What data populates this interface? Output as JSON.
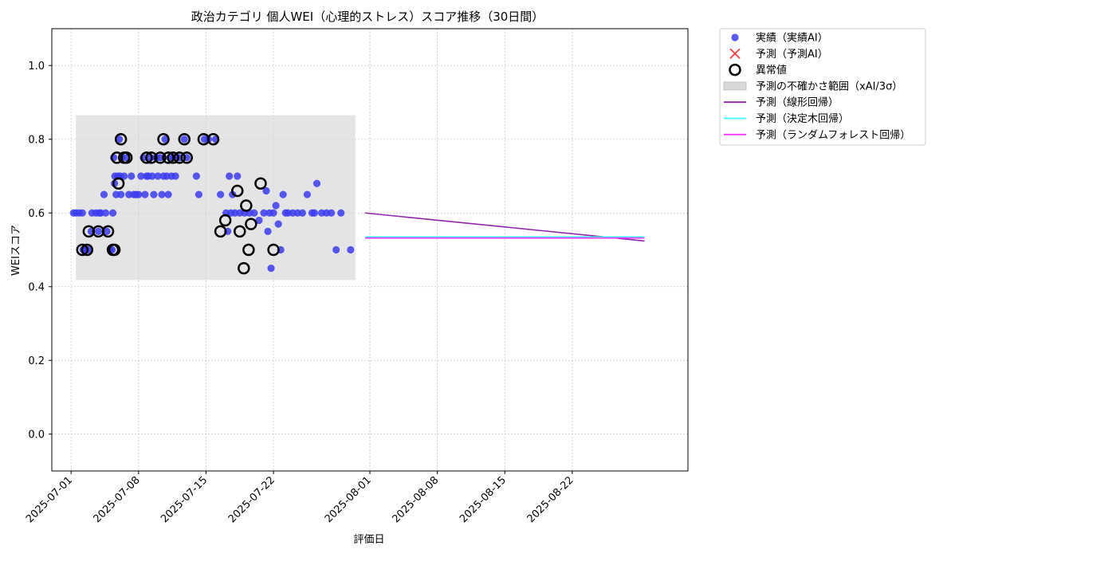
{
  "chart_data": {
    "type": "scatter",
    "title": "政治カテゴリ 個人WEI（心理的ストレス）スコア推移（30日間）",
    "xlabel": "評価日",
    "ylabel": "WEIスコア",
    "xlim": [
      "2025-06-29",
      "2025-09-03"
    ],
    "ylim": [
      -0.1,
      1.1
    ],
    "x_ticks": [
      "2025-07-01",
      "2025-07-08",
      "2025-07-15",
      "2025-07-22",
      "2025-08-01",
      "2025-08-08",
      "2025-08-15",
      "2025-08-22"
    ],
    "y_ticks": [
      0.0,
      0.2,
      0.4,
      0.6,
      0.8,
      1.0
    ],
    "y_tick_labels": [
      "0.0",
      "0.2",
      "0.4",
      "0.6",
      "0.8",
      "1.0"
    ],
    "grid": true,
    "legend_position": "outside-top-right",
    "legend": [
      {
        "label": "実績（実績AI）",
        "kind": "dot",
        "color": "#3c3cf0"
      },
      {
        "label": "予測（予測AI）",
        "kind": "x",
        "color": "#ff3b3b"
      },
      {
        "label": "異常値",
        "kind": "ring",
        "color": "#000000"
      },
      {
        "label": "予測の不確かさ範囲（xAI/3σ）",
        "kind": "band",
        "color": "#d8d8d8"
      },
      {
        "label": "予測（線形回帰）",
        "kind": "line",
        "color": "#8e24aa"
      },
      {
        "label": "予測（決定木回帰）",
        "kind": "line",
        "color": "#33ffff"
      },
      {
        "label": "予測（ランダムフォレスト回帰）",
        "kind": "line",
        "color": "#ff33ff"
      }
    ],
    "uncertainty_band": {
      "x_start": "2025-07-01T12:00",
      "x_end": "2025-07-30T12:00",
      "y_low": 0.418,
      "y_high": 0.865,
      "color": "#d8d8d8"
    },
    "actual_color": "#3c3cf0",
    "actual": [
      [
        "2025-07-01T06:00",
        0.6
      ],
      [
        "2025-07-01T12:00",
        0.6
      ],
      [
        "2025-07-01T20:00",
        0.6
      ],
      [
        "2025-07-02T04:00",
        0.6
      ],
      [
        "2025-07-02T06:00",
        0.5
      ],
      [
        "2025-07-02T12:00",
        0.5
      ],
      [
        "2025-07-02T20:00",
        0.5
      ],
      [
        "2025-07-03T02:00",
        0.55
      ],
      [
        "2025-07-03T04:00",
        0.6
      ],
      [
        "2025-07-03T14:00",
        0.6
      ],
      [
        "2025-07-03T20:00",
        0.55
      ],
      [
        "2025-07-03T22:00",
        0.6
      ],
      [
        "2025-07-04T02:00",
        0.6
      ],
      [
        "2025-07-04T10:00",
        0.65
      ],
      [
        "2025-07-04T14:00",
        0.6
      ],
      [
        "2025-07-04T17:00",
        0.55
      ],
      [
        "2025-07-05T02:00",
        0.5
      ],
      [
        "2025-07-05T06:00",
        0.5
      ],
      [
        "2025-07-05T08:00",
        0.6
      ],
      [
        "2025-07-05T10:00",
        0.75
      ],
      [
        "2025-07-05T12:00",
        0.68
      ],
      [
        "2025-07-05T13:00",
        0.7
      ],
      [
        "2025-07-05T16:00",
        0.65
      ],
      [
        "2025-07-05T20:00",
        0.7
      ],
      [
        "2025-07-06T00:00",
        0.8
      ],
      [
        "2025-07-06T02:00",
        0.7
      ],
      [
        "2025-07-06T04:00",
        0.65
      ],
      [
        "2025-07-06T06:00",
        0.75
      ],
      [
        "2025-07-06T12:00",
        0.7
      ],
      [
        "2025-07-06T18:00",
        0.75
      ],
      [
        "2025-07-07T00:00",
        0.65
      ],
      [
        "2025-07-07T06:00",
        0.7
      ],
      [
        "2025-07-07T12:00",
        0.65
      ],
      [
        "2025-07-07T18:00",
        0.65
      ],
      [
        "2025-07-08T00:00",
        0.65
      ],
      [
        "2025-07-08T06:00",
        0.7
      ],
      [
        "2025-07-08T12:00",
        0.75
      ],
      [
        "2025-07-08T16:00",
        0.65
      ],
      [
        "2025-07-08T20:00",
        0.7
      ],
      [
        "2025-07-09T00:00",
        0.7
      ],
      [
        "2025-07-09T06:00",
        0.75
      ],
      [
        "2025-07-09T10:00",
        0.7
      ],
      [
        "2025-07-09T14:00",
        0.65
      ],
      [
        "2025-07-09T20:00",
        0.75
      ],
      [
        "2025-07-10T00:00",
        0.7
      ],
      [
        "2025-07-10T06:00",
        0.75
      ],
      [
        "2025-07-10T10:00",
        0.65
      ],
      [
        "2025-07-10T14:00",
        0.7
      ],
      [
        "2025-07-10T18:00",
        0.8
      ],
      [
        "2025-07-10T22:00",
        0.7
      ],
      [
        "2025-07-11T02:00",
        0.65
      ],
      [
        "2025-07-11T06:00",
        0.75
      ],
      [
        "2025-07-11T10:00",
        0.7
      ],
      [
        "2025-07-11T16:00",
        0.75
      ],
      [
        "2025-07-11T20:00",
        0.7
      ],
      [
        "2025-07-12T06:00",
        0.75
      ],
      [
        "2025-07-12T18:00",
        0.8
      ],
      [
        "2025-07-13T00:00",
        0.75
      ],
      [
        "2025-07-14T00:00",
        0.7
      ],
      [
        "2025-07-14T06:00",
        0.65
      ],
      [
        "2025-07-14T20:00",
        0.8
      ],
      [
        "2025-07-15T06:00",
        0.8
      ],
      [
        "2025-07-16T00:00",
        0.8
      ],
      [
        "2025-07-16T12:00",
        0.65
      ],
      [
        "2025-07-17T02:00",
        0.6
      ],
      [
        "2025-07-17T06:00",
        0.55
      ],
      [
        "2025-07-17T10:00",
        0.7
      ],
      [
        "2025-07-17T14:00",
        0.6
      ],
      [
        "2025-07-17T18:00",
        0.65
      ],
      [
        "2025-07-18T00:00",
        0.6
      ],
      [
        "2025-07-18T06:00",
        0.7
      ],
      [
        "2025-07-18T12:00",
        0.6
      ],
      [
        "2025-07-19T00:00",
        0.6
      ],
      [
        "2025-07-19T12:00",
        0.6
      ],
      [
        "2025-07-20T00:00",
        0.6
      ],
      [
        "2025-07-20T12:00",
        0.58
      ],
      [
        "2025-07-21T00:00",
        0.6
      ],
      [
        "2025-07-21T06:00",
        0.66
      ],
      [
        "2025-07-21T10:00",
        0.55
      ],
      [
        "2025-07-21T14:00",
        0.6
      ],
      [
        "2025-07-21T18:00",
        0.45
      ],
      [
        "2025-07-22T00:00",
        0.6
      ],
      [
        "2025-07-22T06:00",
        0.62
      ],
      [
        "2025-07-22T12:00",
        0.57
      ],
      [
        "2025-07-22T18:00",
        0.5
      ],
      [
        "2025-07-23T00:00",
        0.65
      ],
      [
        "2025-07-23T06:00",
        0.6
      ],
      [
        "2025-07-23T12:00",
        0.6
      ],
      [
        "2025-07-24T00:00",
        0.6
      ],
      [
        "2025-07-24T12:00",
        0.6
      ],
      [
        "2025-07-25T00:00",
        0.6
      ],
      [
        "2025-07-25T12:00",
        0.65
      ],
      [
        "2025-07-26T00:00",
        0.6
      ],
      [
        "2025-07-26T06:00",
        0.6
      ],
      [
        "2025-07-26T12:00",
        0.68
      ],
      [
        "2025-07-27T00:00",
        0.6
      ],
      [
        "2025-07-27T12:00",
        0.6
      ],
      [
        "2025-07-28T00:00",
        0.6
      ],
      [
        "2025-07-28T12:00",
        0.5
      ],
      [
        "2025-07-29T00:00",
        0.6
      ],
      [
        "2025-07-30T00:00",
        0.5
      ]
    ],
    "anomalies": [
      [
        "2025-07-02T04:00",
        0.5
      ],
      [
        "2025-07-02T16:00",
        0.5
      ],
      [
        "2025-07-02T20:00",
        0.55
      ],
      [
        "2025-07-03T20:00",
        0.55
      ],
      [
        "2025-07-04T20:00",
        0.55
      ],
      [
        "2025-07-05T08:00",
        0.5
      ],
      [
        "2025-07-05T12:00",
        0.5
      ],
      [
        "2025-07-05T18:00",
        0.75
      ],
      [
        "2025-07-05T22:00",
        0.68
      ],
      [
        "2025-07-06T04:00",
        0.8
      ],
      [
        "2025-07-06T12:00",
        0.75
      ],
      [
        "2025-07-06T18:00",
        0.75
      ],
      [
        "2025-07-08T20:00",
        0.75
      ],
      [
        "2025-07-09T08:00",
        0.75
      ],
      [
        "2025-07-10T06:00",
        0.75
      ],
      [
        "2025-07-10T14:00",
        0.8
      ],
      [
        "2025-07-11T02:00",
        0.75
      ],
      [
        "2025-07-11T14:00",
        0.75
      ],
      [
        "2025-07-12T06:00",
        0.75
      ],
      [
        "2025-07-12T18:00",
        0.8
      ],
      [
        "2025-07-13T00:00",
        0.75
      ],
      [
        "2025-07-14T18:00",
        0.8
      ],
      [
        "2025-07-15T18:00",
        0.8
      ],
      [
        "2025-07-16T12:00",
        0.55
      ],
      [
        "2025-07-17T00:00",
        0.58
      ],
      [
        "2025-07-18T06:00",
        0.66
      ],
      [
        "2025-07-18T12:00",
        0.55
      ],
      [
        "2025-07-18T22:00",
        0.45
      ],
      [
        "2025-07-19T04:00",
        0.62
      ],
      [
        "2025-07-19T10:00",
        0.5
      ],
      [
        "2025-07-19T16:00",
        0.57
      ],
      [
        "2025-07-20T16:00",
        0.68
      ],
      [
        "2025-07-22T00:00",
        0.5
      ]
    ],
    "forecast_lines": [
      {
        "name": "予測（線形回帰）",
        "color": "#8e24aa",
        "x": [
          "2025-07-31T12:00",
          "2025-08-29T12:00"
        ],
        "y": [
          0.6,
          0.524
        ]
      },
      {
        "name": "予測（決定木回帰）",
        "color": "#33ffff",
        "x": [
          "2025-07-31T12:00",
          "2025-08-29T12:00"
        ],
        "y": [
          0.535,
          0.535
        ]
      },
      {
        "name": "予測（ランダムフォレスト回帰）",
        "color": "#ff33ff",
        "x": [
          "2025-07-31T12:00",
          "2025-08-29T12:00"
        ],
        "y": [
          0.532,
          0.532
        ]
      }
    ]
  }
}
